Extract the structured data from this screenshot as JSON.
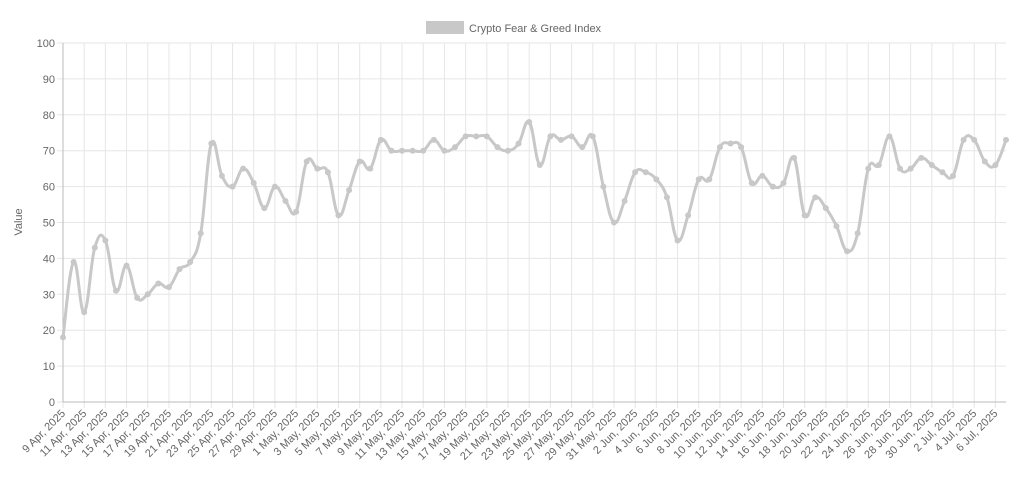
{
  "chart_data": {
    "type": "line",
    "legend": "top",
    "y_label": "Value",
    "grid": true,
    "ylim": [
      0,
      100
    ],
    "yticks": [
      0,
      10,
      20,
      30,
      40,
      50,
      60,
      70,
      80,
      90,
      100
    ],
    "categories": [
      "9 Apr, 2025",
      null,
      "11 Apr, 2025",
      null,
      "13 Apr, 2025",
      null,
      "15 Apr, 2025",
      null,
      "17 Apr, 2025",
      null,
      "19 Apr, 2025",
      null,
      "21 Apr, 2025",
      null,
      "23 Apr, 2025",
      null,
      "25 Apr, 2025",
      null,
      "27 Apr, 2025",
      null,
      "29 Apr, 2025",
      null,
      "1 May, 2025",
      null,
      "3 May, 2025",
      null,
      "5 May, 2025",
      null,
      "7 May, 2025",
      null,
      "9 May, 2025",
      null,
      "11 May, 2025",
      null,
      "13 May, 2025",
      null,
      "15 May, 2025",
      null,
      "17 May, 2025",
      null,
      "19 May, 2025",
      null,
      "21 May, 2025",
      null,
      "23 May, 2025",
      null,
      "25 May, 2025",
      null,
      "27 May, 2025",
      null,
      "29 May, 2025",
      null,
      "31 May, 2025",
      null,
      "2 Jun, 2025",
      null,
      "4 Jun, 2025",
      null,
      "6 Jun, 2025",
      null,
      "8 Jun, 2025",
      null,
      "10 Jun, 2025",
      null,
      "12 Jun, 2025",
      null,
      "14 Jun, 2025",
      null,
      "16 Jun, 2025",
      null,
      "18 Jun, 2025",
      null,
      "20 Jun, 2025",
      null,
      "22 Jun, 2025",
      null,
      "24 Jun, 2025",
      null,
      "26 Jun, 2025",
      null,
      "28 Jun, 2025",
      null,
      "30 Jun, 2025",
      null,
      "2 Jul, 2025",
      null,
      "4 Jul, 2025",
      null,
      "6 Jul, 2025",
      null
    ],
    "series": [
      {
        "name": "Crypto Fear & Greed Index",
        "color": "#c8c8c8",
        "values": [
          18,
          39,
          25,
          43,
          45,
          31,
          38,
          29,
          30,
          33,
          32,
          37,
          39,
          47,
          72,
          63,
          60,
          65,
          61,
          54,
          60,
          56,
          53,
          67,
          65,
          64,
          52,
          59,
          67,
          65,
          73,
          70,
          70,
          70,
          70,
          73,
          70,
          71,
          74,
          74,
          74,
          71,
          70,
          72,
          78,
          66,
          74,
          73,
          74,
          71,
          74,
          60,
          50,
          56,
          64,
          64,
          62,
          57,
          45,
          52,
          62,
          62,
          71,
          72,
          71,
          61,
          63,
          60,
          61,
          68,
          52,
          57,
          54,
          49,
          42,
          47,
          65,
          66,
          74,
          65,
          65,
          68,
          66,
          64,
          63,
          73,
          73,
          67,
          66,
          73
        ]
      }
    ]
  }
}
